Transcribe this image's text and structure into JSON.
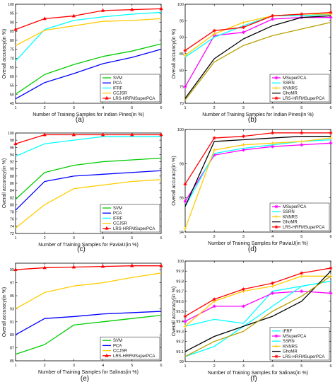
{
  "chart_data": [
    {
      "type": "line",
      "panel_label": "(a)",
      "xlabel": "Number of Training Samples for Indian Pines(in %)",
      "ylabel": "Overall accuracy(in %)",
      "x": [
        1,
        2,
        3,
        4,
        5,
        6
      ],
      "xticks": [
        "1",
        "2",
        "3",
        "4",
        "5",
        "6"
      ],
      "xlim": [
        1,
        6
      ],
      "ylim": [
        45,
        100
      ],
      "yticks": [
        45,
        50,
        55,
        60,
        65,
        70,
        75,
        80,
        85,
        90,
        95,
        100
      ],
      "legend_position": "bottom-right",
      "series": [
        {
          "name": "SVM",
          "color": "#00cc00",
          "marker": "none",
          "values": [
            50,
            61,
            66.5,
            71,
            74,
            78
          ]
        },
        {
          "name": "PCA",
          "color": "#0000ff",
          "marker": "none",
          "values": [
            47.5,
            56.5,
            61.5,
            67,
            70.5,
            75
          ]
        },
        {
          "name": "IFRF",
          "color": "#00ffff",
          "marker": "none",
          "values": [
            68.5,
            86,
            91,
            93,
            94.5,
            95.5
          ]
        },
        {
          "name": "CCJSR",
          "color": "#ffcc00",
          "marker": "none",
          "values": [
            77,
            85.5,
            88,
            90.5,
            91,
            92
          ]
        },
        {
          "name": "LRS-HRFMSuperPCA",
          "color": "#ff0000",
          "marker": "^",
          "values": [
            86,
            92,
            93.5,
            96.5,
            97,
            97.5
          ]
        }
      ]
    },
    {
      "type": "line",
      "panel_label": "(b)",
      "xlabel": "Number of Training Samples for Indian Pines(in %)",
      "ylabel": "Overall accuracy(in %)",
      "x": [
        1,
        2,
        3,
        4,
        5,
        6
      ],
      "xticks": [
        "1",
        "2",
        "3",
        "4",
        "5",
        "6"
      ],
      "xlim": [
        1,
        6
      ],
      "ylim": [
        70,
        100
      ],
      "yticks": [
        70,
        75,
        80,
        85,
        90,
        95,
        100
      ],
      "legend_position": "bottom-right",
      "series": [
        {
          "name": "MSuperPCA",
          "color": "#ff00ff",
          "marker": "*",
          "values": [
            75,
            90.5,
            91.5,
            95.5,
            96,
            96
          ]
        },
        {
          "name": "SSRN",
          "color": "#00ffff",
          "marker": "none",
          "values": [
            84,
            90,
            93.5,
            96.5,
            96.5,
            97
          ]
        },
        {
          "name": "KNNRS",
          "color": "#ffcc00",
          "marker": "+",
          "values": [
            84.5,
            91,
            94.5,
            96.5,
            97,
            97
          ]
        },
        {
          "name": "GhoMR",
          "color": "#000000",
          "marker": "none",
          "values": [
            71.5,
            83.5,
            89.5,
            93.5,
            96,
            96.5
          ]
        },
        {
          "name": "",
          "color": "#b8a000",
          "marker": "none",
          "values": [
            71,
            82.5,
            87.5,
            90.5,
            92.5,
            94.5
          ]
        },
        {
          "name": "LRS-HRFMSuperPCA",
          "color": "#ff0000",
          "marker": "*",
          "values": [
            86,
            92,
            93,
            96.5,
            97,
            97.5
          ]
        }
      ]
    },
    {
      "type": "line",
      "panel_label": "(c)",
      "xlabel": "Number of Training Samples for PaviaU(in %)",
      "ylabel": "Overall accuracy(in %)",
      "x": [
        1,
        2,
        3,
        4,
        5,
        6
      ],
      "xticks": [
        "1",
        "2",
        "3",
        "4",
        "5",
        "6"
      ],
      "xlim": [
        1,
        6
      ],
      "ylim": [
        72,
        100
      ],
      "yticks": [
        72,
        74,
        76,
        78,
        80,
        82,
        84,
        86,
        88,
        90,
        92,
        94,
        96,
        98,
        100
      ],
      "legend_position": "bottom-right",
      "series": [
        {
          "name": "SVM",
          "color": "#00cc00",
          "marker": "none",
          "values": [
            81.5,
            89,
            91,
            92,
            92.5,
            93
          ]
        },
        {
          "name": "PCA",
          "color": "#0000ff",
          "marker": "none",
          "values": [
            78.5,
            86.5,
            88,
            88.5,
            89,
            89.5
          ]
        },
        {
          "name": "IFRF",
          "color": "#00ffff",
          "marker": "none",
          "values": [
            93.5,
            97,
            98,
            99,
            99,
            99
          ]
        },
        {
          "name": "CCJSR",
          "color": "#ffcc00",
          "marker": "none",
          "values": [
            73.5,
            80,
            84.5,
            85.5,
            86.5,
            87
          ]
        },
        {
          "name": "LRS-HRFMSuperPCA",
          "color": "#ff0000",
          "marker": "^",
          "values": [
            97,
            99.5,
            99.5,
            99.5,
            99.5,
            99.5
          ]
        }
      ]
    },
    {
      "type": "line",
      "panel_label": "(d)",
      "xlabel": "Number of Training Samples for PaviaU(in %)",
      "ylabel": "Overall accuracy(in %)",
      "x": [
        1,
        2,
        3,
        4,
        5,
        6
      ],
      "xticks": [
        "1",
        "2",
        "3",
        "4",
        "5",
        "6"
      ],
      "xlim": [
        1,
        6
      ],
      "ylim": [
        94,
        100
      ],
      "yticks": [
        94,
        96,
        98,
        100
      ],
      "legend_position": "bottom-right",
      "series": [
        {
          "name": "MSuperPCA",
          "color": "#ff00ff",
          "marker": "*",
          "values": [
            95.8,
            98.5,
            98.8,
            99,
            99.1,
            99.2
          ]
        },
        {
          "name": "SSRN",
          "color": "#00ffff",
          "marker": "none",
          "values": [
            95.5,
            98.6,
            98.9,
            99.1,
            99.3,
            99.4
          ]
        },
        {
          "name": "KNNRS",
          "color": "#ffcc00",
          "marker": "+",
          "values": [
            94.2,
            98.8,
            99.1,
            99.2,
            99.3,
            99.5
          ]
        },
        {
          "name": "GhoMR",
          "color": "#000000",
          "marker": "none",
          "values": [
            95.5,
            99.3,
            99.4,
            99.5,
            99.6,
            99.6
          ]
        },
        {
          "name": "LRS-HRFMSuperPCA",
          "color": "#ff0000",
          "marker": "*",
          "values": [
            96.8,
            99.5,
            99.6,
            99.8,
            99.8,
            99.8
          ]
        }
      ]
    },
    {
      "type": "line",
      "panel_label": "(e)",
      "xlabel": "Number of Training Samples for Salinas(in %)",
      "ylabel": "Overall accuracy(in %)",
      "x": [
        1,
        2,
        3,
        4,
        5,
        6
      ],
      "xticks": [
        "1",
        "2",
        "3",
        "4",
        "5",
        "6"
      ],
      "xlim": [
        1,
        6
      ],
      "ylim": [
        85,
        100
      ],
      "yticks": [
        85,
        87,
        89,
        91,
        93,
        95,
        97,
        99
      ],
      "legend_position": "bottom-right",
      "series": [
        {
          "name": "SVM",
          "color": "#00cc00",
          "marker": "none",
          "values": [
            86,
            87.5,
            90.5,
            91,
            91.5,
            92
          ]
        },
        {
          "name": "PCA",
          "color": "#0000ff",
          "marker": "none",
          "values": [
            89,
            91.5,
            91.8,
            92.2,
            92.4,
            92.6
          ]
        },
        {
          "name": "CCJSR",
          "color": "#ffcc00",
          "marker": "none",
          "values": [
            93,
            95.5,
            96.5,
            97,
            97.8,
            98.5
          ]
        },
        {
          "name": "LRS-HRFMSuperPCA",
          "color": "#ff0000",
          "marker": "^",
          "values": [
            99,
            99.3,
            99.4,
            99.5,
            99.6,
            99.6
          ]
        }
      ]
    },
    {
      "type": "line",
      "panel_label": "(f)",
      "xlabel": "Number of Training Samples for Salinas(in %)",
      "ylabel": "Overall accuracy(in %)",
      "x": [
        1,
        2,
        3,
        4,
        5,
        6
      ],
      "xticks": [
        "1",
        "2",
        "3",
        "4",
        "5",
        "6"
      ],
      "xlim": [
        1,
        6
      ],
      "ylim": [
        99,
        100
      ],
      "yticks": [
        99,
        99.1,
        99.2,
        99.3,
        99.4,
        99.5,
        99.6,
        99.7,
        99.8,
        99.9,
        100
      ],
      "legend_position": "bottom-right",
      "series": [
        {
          "name": "IFRF",
          "color": "#00ffff",
          "marker": "none",
          "values": [
            99.35,
            99.42,
            99.38,
            99.7,
            99.75,
            99.8
          ]
        },
        {
          "name": "MSuperPCA",
          "color": "#ff00ff",
          "marker": "*",
          "values": [
            99.4,
            99.55,
            99.55,
            99.68,
            99.7,
            99.68
          ]
        },
        {
          "name": "SSRN",
          "color": "#00ffff",
          "marker": "none",
          "values": [
            99.05,
            99.15,
            99.35,
            99.55,
            99.75,
            99.8
          ]
        },
        {
          "name": "KNNRS",
          "color": "#ffcc00",
          "marker": "+",
          "values": [
            99.35,
            99.6,
            99.7,
            99.75,
            99.85,
            99.85
          ]
        },
        {
          "name": "GhoMR",
          "color": "#000000",
          "marker": "none",
          "values": [
            99.1,
            99.25,
            99.35,
            99.45,
            99.6,
            99.9
          ]
        },
        {
          "name": "",
          "color": "#b8a000",
          "marker": "none",
          "values": [
            99.05,
            99.2,
            99.3,
            99.5,
            99.65,
            99.85
          ]
        },
        {
          "name": "LRS-HRFMSuperPCA",
          "color": "#ff0000",
          "marker": "*",
          "values": [
            99.45,
            99.62,
            99.72,
            99.78,
            99.88,
            99.93
          ]
        }
      ]
    }
  ]
}
